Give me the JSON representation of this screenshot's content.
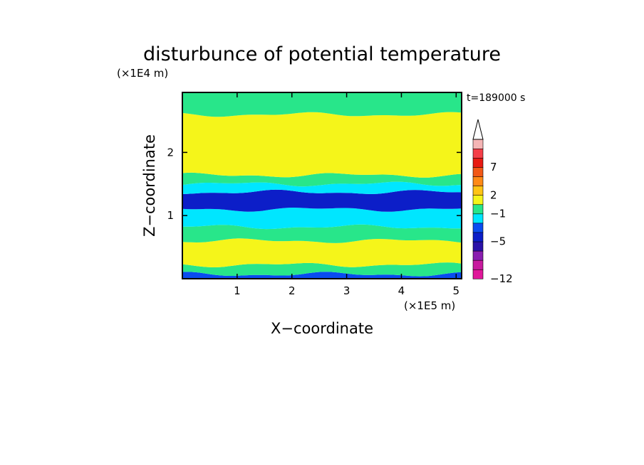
{
  "chart_data": {
    "type": "heatmap",
    "title": "disturbunce of potential temperature",
    "time_label": "t=189000 s",
    "xlabel": "X−coordinate",
    "ylabel": "Z−coordinate",
    "x_unit": "(×1E5 m)",
    "y_unit": "(×1E4 m)",
    "xlim": [
      0,
      5.1
    ],
    "ylim": [
      0,
      2.95
    ],
    "x_ticks": [
      "1",
      "2",
      "3",
      "4",
      "5"
    ],
    "y_ticks": [
      "1",
      "2"
    ],
    "colorbar": {
      "tick_labels": [
        "−12",
        "−5",
        "−1",
        "2",
        "7"
      ],
      "colors": [
        "#e0189a",
        "#c81a9e",
        "#8a1eb0",
        "#2a12a8",
        "#0c1ec8",
        "#0a4cf0",
        "#00e6ff",
        "#28e68a",
        "#f5f51a",
        "#ffc414",
        "#ff8a16",
        "#f25816",
        "#e81a12",
        "#f53f48",
        "#f5b5b5"
      ],
      "extend": "max"
    },
    "bands": [
      {
        "z_bottom": 0.0,
        "z_top": 0.07,
        "level": 0,
        "color": "#0a4cf0"
      },
      {
        "z_bottom": 0.07,
        "z_top": 0.22,
        "level": 1,
        "color": "#28e68a"
      },
      {
        "z_bottom": 0.22,
        "z_top": 0.6,
        "level": 2,
        "color": "#f5f51a"
      },
      {
        "z_bottom": 0.6,
        "z_top": 0.82,
        "level": 1,
        "color": "#28e68a"
      },
      {
        "z_bottom": 0.82,
        "z_top": 1.1,
        "level": 0,
        "color": "#00e6ff"
      },
      {
        "z_bottom": 1.1,
        "z_top": 1.37,
        "level": -1,
        "color": "#0c1ec8"
      },
      {
        "z_bottom": 1.37,
        "z_top": 1.5,
        "level": 0,
        "color": "#00e6ff"
      },
      {
        "z_bottom": 1.5,
        "z_top": 1.64,
        "level": 1,
        "color": "#28e68a"
      },
      {
        "z_bottom": 1.64,
        "z_top": 2.6,
        "level": 2,
        "color": "#f5f51a"
      },
      {
        "z_bottom": 2.6,
        "z_top": 2.95,
        "level": 1,
        "color": "#28e68a"
      }
    ]
  }
}
